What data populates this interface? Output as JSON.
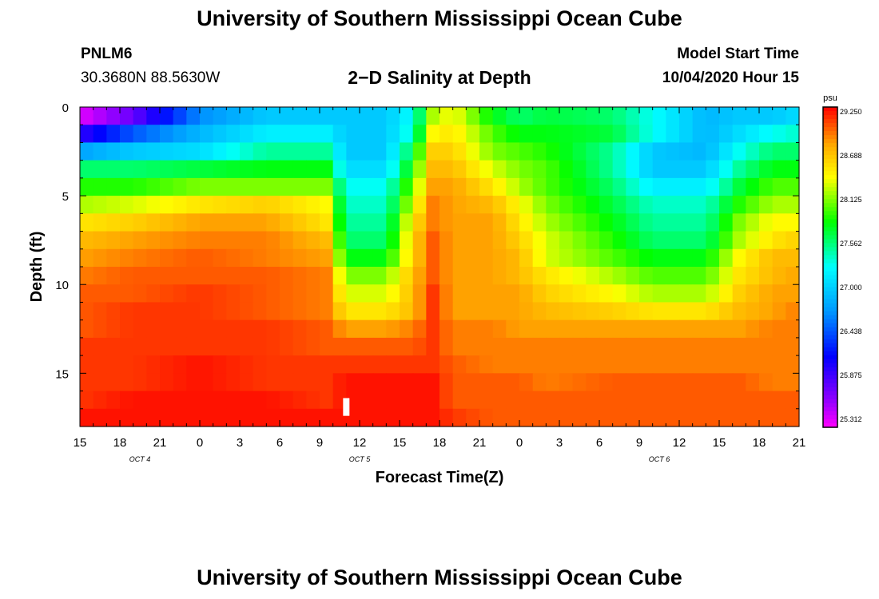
{
  "header": {
    "title": "University of Southern Mississippi Ocean Cube",
    "station_id": "PNLM6",
    "coordinates": "30.3680N 88.5630W",
    "subtitle": "2−D Salinity at Depth",
    "model_start_label": "Model Start Time",
    "model_start_value": "10/04/2020 Hour 15"
  },
  "footer": {
    "title": "University of Southern Mississippi Ocean Cube"
  },
  "chart_data": {
    "type": "heatmap",
    "title": "2−D Salinity at Depth",
    "xlabel": "Forecast Time(Z)",
    "ylabel": "Depth (ft)",
    "x_ticks": [
      "15",
      "18",
      "21",
      "0",
      "3",
      "6",
      "9",
      "12",
      "15",
      "18",
      "21",
      "0",
      "3",
      "6",
      "9",
      "12",
      "15",
      "18",
      "21"
    ],
    "x_range_hours": [
      0,
      54
    ],
    "date_labels": [
      {
        "label": "OCT 4",
        "hour": 4.5
      },
      {
        "label": "OCT 5",
        "hour": 21
      },
      {
        "label": "OCT 6",
        "hour": 43.5
      }
    ],
    "y_ticks": [
      0,
      5,
      10,
      15
    ],
    "y_range": [
      0,
      18
    ],
    "colorbar": {
      "unit": "psu",
      "min": 25.312,
      "max": 29.25,
      "tick_labels": [
        "29.250",
        "28.688",
        "28.125",
        "27.562",
        "27.000",
        "26.438",
        "25.875",
        "25.312"
      ]
    },
    "current_marker_hour": 20,
    "depth_levels_ft": [
      0.5,
      1.5,
      2.5,
      3.5,
      4.5,
      5.5,
      6.5,
      7.5,
      8.5,
      9.5,
      10.5,
      11.5,
      12.5,
      13.5,
      14.5,
      15.5,
      16.5,
      17.5
    ],
    "time_keyframes_hours": [
      0,
      4,
      9,
      14,
      18.5,
      20,
      23,
      25,
      26.5,
      28,
      31,
      33,
      35,
      40,
      43,
      47,
      49.5,
      52,
      54
    ],
    "salinity_keyframes_psu": [
      [
        25.4,
        25.8,
        26.7,
        27.0,
        27.0,
        27.0,
        27.0,
        27.3,
        28.2,
        28.4,
        27.8,
        27.6,
        27.7,
        27.6,
        27.3,
        26.9,
        27.0,
        27.0,
        27.1
      ],
      [
        26.0,
        26.5,
        26.9,
        27.2,
        27.2,
        27.0,
        27.0,
        27.4,
        28.4,
        28.5,
        28.0,
        27.8,
        27.8,
        27.7,
        27.3,
        26.9,
        27.1,
        27.3,
        27.4
      ],
      [
        26.8,
        27.0,
        27.1,
        27.5,
        27.5,
        27.0,
        27.0,
        27.7,
        28.6,
        28.6,
        28.1,
        28.0,
        27.9,
        27.5,
        27.0,
        26.9,
        27.3,
        27.6,
        27.6
      ],
      [
        27.6,
        27.6,
        27.7,
        27.8,
        27.8,
        27.1,
        27.1,
        27.9,
        28.7,
        28.7,
        28.3,
        28.1,
        28.0,
        27.5,
        27.0,
        27.0,
        27.5,
        27.8,
        27.8
      ],
      [
        27.9,
        27.9,
        28.1,
        28.1,
        28.1,
        27.3,
        27.3,
        28.1,
        28.8,
        28.8,
        28.5,
        28.2,
        28.0,
        27.6,
        27.2,
        27.2,
        27.7,
        28.0,
        28.0
      ],
      [
        28.2,
        28.3,
        28.5,
        28.6,
        28.4,
        27.4,
        27.4,
        28.3,
        28.9,
        28.8,
        28.7,
        28.4,
        28.1,
        27.7,
        27.4,
        27.4,
        27.9,
        28.2,
        28.2
      ],
      [
        28.5,
        28.6,
        28.8,
        28.8,
        28.5,
        27.5,
        27.5,
        28.5,
        28.9,
        28.8,
        28.8,
        28.5,
        28.2,
        27.8,
        27.5,
        27.5,
        28.1,
        28.4,
        28.4
      ],
      [
        28.7,
        28.8,
        28.9,
        28.9,
        28.7,
        27.6,
        27.6,
        28.6,
        29.0,
        28.8,
        28.8,
        28.6,
        28.3,
        27.9,
        27.6,
        27.6,
        28.2,
        28.5,
        28.6
      ],
      [
        28.8,
        28.9,
        29.0,
        28.9,
        28.8,
        27.8,
        27.8,
        28.6,
        29.0,
        28.8,
        28.8,
        28.7,
        28.3,
        28.0,
        27.8,
        27.8,
        28.4,
        28.7,
        28.7
      ],
      [
        28.9,
        29.0,
        29.0,
        29.0,
        28.9,
        28.1,
        28.1,
        28.7,
        29.0,
        28.8,
        28.8,
        28.7,
        28.5,
        28.2,
        28.0,
        28.0,
        28.5,
        28.7,
        28.8
      ],
      [
        29.0,
        29.0,
        29.1,
        29.0,
        28.9,
        28.3,
        28.3,
        28.7,
        29.1,
        28.8,
        28.8,
        28.8,
        28.6,
        28.4,
        28.2,
        28.2,
        28.6,
        28.8,
        28.8
      ],
      [
        29.0,
        29.1,
        29.1,
        29.0,
        28.9,
        28.5,
        28.5,
        28.7,
        29.1,
        28.8,
        28.8,
        28.8,
        28.7,
        28.6,
        28.5,
        28.5,
        28.7,
        28.8,
        28.9
      ],
      [
        29.0,
        29.1,
        29.1,
        29.1,
        29.0,
        28.8,
        28.8,
        28.9,
        29.1,
        28.9,
        28.9,
        28.8,
        28.8,
        28.8,
        28.8,
        28.8,
        28.8,
        28.9,
        28.9
      ],
      [
        29.1,
        29.1,
        29.1,
        29.1,
        29.0,
        29.0,
        29.0,
        29.0,
        29.1,
        28.9,
        28.9,
        28.9,
        28.9,
        28.9,
        28.9,
        28.9,
        28.9,
        28.9,
        28.9
      ],
      [
        29.1,
        29.1,
        29.2,
        29.1,
        29.1,
        29.1,
        29.1,
        29.1,
        29.1,
        29.0,
        28.9,
        28.9,
        28.9,
        28.9,
        28.9,
        28.9,
        28.9,
        28.9,
        28.9
      ],
      [
        29.1,
        29.1,
        29.2,
        29.1,
        29.1,
        29.2,
        29.2,
        29.2,
        29.2,
        29.0,
        29.0,
        29.0,
        28.9,
        29.0,
        29.0,
        29.0,
        29.0,
        28.9,
        28.9
      ],
      [
        29.1,
        29.2,
        29.2,
        29.2,
        29.1,
        29.2,
        29.2,
        29.2,
        29.2,
        29.0,
        29.0,
        29.0,
        29.0,
        29.0,
        29.0,
        29.0,
        29.0,
        29.0,
        29.0
      ],
      [
        29.2,
        29.2,
        29.2,
        29.2,
        29.2,
        29.2,
        29.2,
        29.2,
        29.2,
        29.1,
        29.0,
        29.0,
        29.0,
        29.0,
        29.0,
        29.0,
        29.0,
        29.0,
        29.0
      ]
    ]
  }
}
